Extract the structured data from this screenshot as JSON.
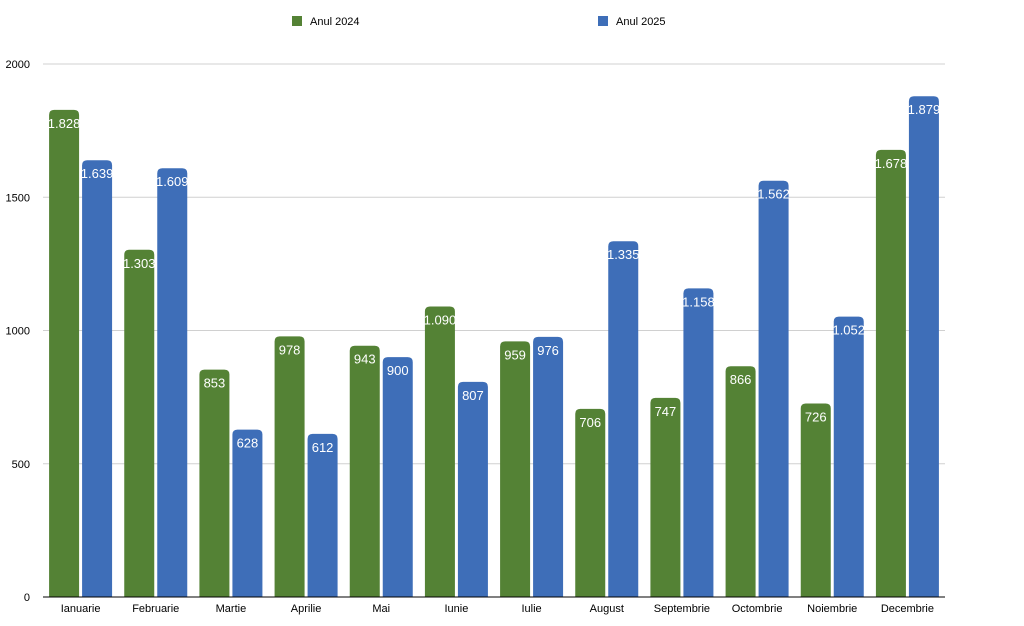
{
  "chart_data": {
    "type": "bar",
    "categories": [
      "Ianuarie",
      "Februarie",
      "Martie",
      "Aprilie",
      "Mai",
      "Iunie",
      "Iulie",
      "August",
      "Septembrie",
      "Octombrie",
      "Noiembrie",
      "Decembrie"
    ],
    "series": [
      {
        "name": "Anul 2024",
        "color": "#548235",
        "values": [
          1828,
          1303,
          853,
          978,
          943,
          1090,
          959,
          706,
          747,
          866,
          726,
          1678
        ],
        "labels": [
          "1.828",
          "1.303",
          "853",
          "978",
          "943",
          "1.090",
          "959",
          "706",
          "747",
          "866",
          "726",
          "1.678"
        ]
      },
      {
        "name": "Anul 2025",
        "color": "#3e6eb8",
        "values": [
          1639,
          1609,
          628,
          612,
          900,
          807,
          976,
          1335,
          1158,
          1562,
          1052,
          1879
        ],
        "labels": [
          "1.639",
          "1.609",
          "628",
          "612",
          "900",
          "807",
          "976",
          "1.335",
          "1.158",
          "1.562",
          "1.052",
          "1.879"
        ]
      }
    ],
    "ylim": [
      0,
      2000
    ],
    "yticks": [
      "0",
      "500",
      "1000",
      "1500",
      "2000"
    ],
    "ytick_values": [
      0,
      500,
      1000,
      1500,
      2000
    ],
    "grid": true,
    "legend": "top-center",
    "title": "",
    "xlabel": "",
    "ylabel": ""
  }
}
